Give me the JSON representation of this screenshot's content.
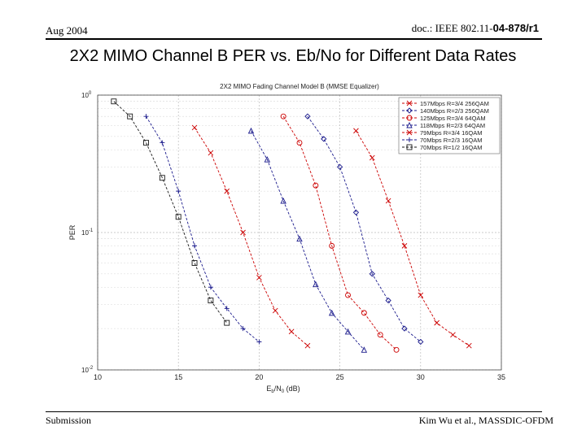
{
  "header": {
    "date": "Aug 2004",
    "doc_prefix": "doc.: IEEE 802.11-",
    "doc_number": "04-878/r1"
  },
  "slide": {
    "title": "2X2 MIMO Channel B PER vs. Eb/No for Different Data Rates"
  },
  "footer": {
    "left": "Submission",
    "right": "Kim Wu et al., MASSDIC-OFDM"
  },
  "chart_data": {
    "type": "line",
    "title": "2X2 MIMO Fading Channel Model B (MMSE Equalizer)",
    "xlabel": "E_b/N_0 (dB)",
    "ylabel": "PER",
    "xlim": [
      10,
      35
    ],
    "ylim": [
      0.01,
      1
    ],
    "yscale": "log",
    "xticks": [
      10,
      15,
      20,
      25,
      30,
      35
    ],
    "xtick_labels": [
      "10",
      "15",
      "20",
      "25",
      "30",
      "35"
    ],
    "ytick_labels": [
      "10^0",
      "10^-1",
      "10^-2"
    ],
    "grid": true,
    "legend_position": "top-right",
    "series": [
      {
        "name": "157Mbps R=3/4 256QAM",
        "color": "#cc0000",
        "marker": "x",
        "x": [
          26.0,
          27.0,
          28.0,
          29.0,
          30.0,
          31.0,
          32.0,
          33.0
        ],
        "y": [
          0.55,
          0.35,
          0.17,
          0.08,
          0.035,
          0.022,
          0.018,
          0.015
        ]
      },
      {
        "name": "140Mbps R=2/3 256QAM",
        "color": "#1a1a8c",
        "marker": "diamond",
        "x": [
          23.0,
          24.0,
          25.0,
          26.0,
          27.0,
          28.0,
          29.0,
          30.0
        ],
        "y": [
          0.7,
          0.48,
          0.3,
          0.14,
          0.05,
          0.032,
          0.02,
          0.016
        ]
      },
      {
        "name": "125Mbps R=3/4 64QAM",
        "color": "#cc0000",
        "marker": "o",
        "x": [
          21.5,
          22.5,
          23.5,
          24.5,
          25.5,
          26.5,
          27.5,
          28.5
        ],
        "y": [
          0.7,
          0.45,
          0.22,
          0.08,
          0.035,
          0.026,
          0.018,
          0.014
        ]
      },
      {
        "name": "118Mbps R=2/3 64QAM",
        "color": "#1a1a8c",
        "marker": "^",
        "x": [
          19.5,
          20.5,
          21.5,
          22.5,
          23.5,
          24.5,
          25.5,
          26.5
        ],
        "y": [
          0.55,
          0.34,
          0.17,
          0.09,
          0.042,
          0.026,
          0.019,
          0.014
        ]
      },
      {
        "name": "79Mbps R=3/4 16QAM",
        "color": "#cc0000",
        "marker": "x",
        "x": [
          16.0,
          17.0,
          18.0,
          19.0,
          20.0,
          21.0,
          22.0,
          23.0
        ],
        "y": [
          0.58,
          0.38,
          0.2,
          0.1,
          0.047,
          0.027,
          0.019,
          0.015
        ]
      },
      {
        "name": "70Mbps R=2/3 16QAM",
        "color": "#1a1a8c",
        "marker": "+",
        "x": [
          13.0,
          14.0,
          15.0,
          16.0,
          17.0,
          18.0,
          19.0,
          20.0
        ],
        "y": [
          0.7,
          0.45,
          0.2,
          0.08,
          0.04,
          0.028,
          0.02,
          0.016
        ]
      },
      {
        "name": "70Mbps R=1/2 16QAM",
        "color": "#1a1a1a",
        "marker": "s",
        "x": [
          11.0,
          12.0,
          13.0,
          14.0,
          15.0,
          16.0,
          17.0,
          18.0
        ],
        "y": [
          0.9,
          0.7,
          0.45,
          0.25,
          0.13,
          0.06,
          0.032,
          0.022
        ]
      }
    ]
  }
}
